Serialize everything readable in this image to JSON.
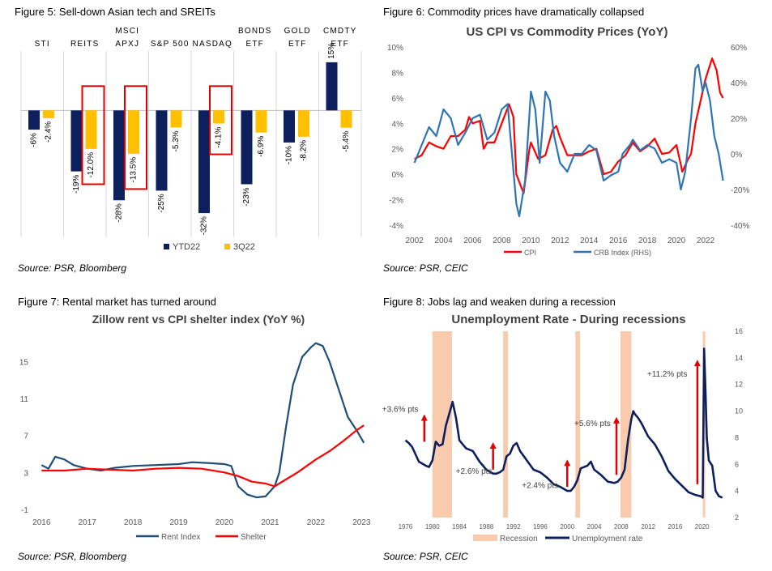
{
  "figures": [
    {
      "id": "fig5",
      "label": "Figure 5: Sell-down Asian tech and SREITs",
      "source": "Source: PSR, Bloomberg",
      "chart_data": {
        "type": "bar",
        "categories": [
          {
            "line1": "STI",
            "line2": ""
          },
          {
            "line1": "REITS",
            "line2": ""
          },
          {
            "line1": "MSCI",
            "line2": "APXJ"
          },
          {
            "line1": "S&P 500",
            "line2": ""
          },
          {
            "line1": "NASDAQ",
            "line2": ""
          },
          {
            "line1": "BONDS",
            "line2": "ETF"
          },
          {
            "line1": "GOLD",
            "line2": "ETF"
          },
          {
            "line1": "CMDTY",
            "line2": "ETF"
          }
        ],
        "series": [
          {
            "name": "YTD22",
            "color": "#0d1f5c",
            "values": [
              -6,
              -19,
              -28,
              -25,
              -32,
              -23,
              -10,
              15
            ],
            "labels": [
              "-6%",
              "-19%",
              "-28%",
              "-25%",
              "-32%",
              "-23%",
              "-10%",
              "15%"
            ]
          },
          {
            "name": "3Q22",
            "color": "#ffc000",
            "values": [
              -2.4,
              -12.0,
              -13.5,
              -5.3,
              -4.1,
              -6.9,
              -8.2,
              -5.4
            ],
            "labels": [
              "-2.4%",
              "-12.0%",
              "-13.5%",
              "-5.3%",
              "-4.1%",
              "-6.9%",
              "-8.2%",
              "-5.4%"
            ]
          }
        ],
        "highlighted_categories": [
          1,
          2,
          4
        ],
        "highlight_color": "#e00000",
        "ylim": [
          -35,
          18
        ],
        "legend_position": "bottom"
      }
    },
    {
      "id": "fig6",
      "label": "Figure 6: Commodity prices have dramatically collapsed",
      "source": "Source: PSR, CEIC",
      "chart_data": {
        "type": "line",
        "title": "US CPI vs Commodity Prices (YoY)",
        "xlim": [
          2001.8,
          2023.5
        ],
        "x_ticks": [
          2002,
          2004,
          2006,
          2008,
          2010,
          2012,
          2014,
          2016,
          2018,
          2020,
          2022
        ],
        "y_left": {
          "ylim": [
            -4,
            10
          ],
          "ticks": [
            -4,
            -2,
            0,
            2,
            4,
            6,
            8,
            10
          ],
          "tick_labels": [
            "-4%",
            "-2%",
            "0%",
            "2%",
            "4%",
            "6%",
            "8%",
            "10%"
          ]
        },
        "y_right": {
          "ylim": [
            -40,
            60
          ],
          "ticks": [
            -40,
            -20,
            0,
            20,
            40,
            60
          ],
          "tick_labels": [
            "-40%",
            "-20%",
            "0%",
            "20%",
            "40%",
            "60%"
          ]
        },
        "series": [
          {
            "name": "CPI",
            "color": "#ff0000",
            "axis": "left",
            "x": [
              2002,
              2002.5,
              2003,
              2003.5,
              2004,
              2004.5,
              2005,
              2005.5,
              2005.75,
              2006,
              2006.5,
              2006.75,
              2007,
              2007.5,
              2008,
              2008.5,
              2008.8,
              2009,
              2009.5,
              2009.9,
              2010,
              2010.5,
              2011,
              2011.5,
              2011.75,
              2012,
              2012.5,
              2013,
              2013.5,
              2014,
              2014.5,
              2015,
              2015.5,
              2016,
              2016.5,
              2017,
              2017.5,
              2018,
              2018.5,
              2019,
              2019.5,
              2020,
              2020.4,
              2020.8,
              2021,
              2021.3,
              2021.6,
              2022,
              2022.45,
              2022.75,
              2023,
              2023.2
            ],
            "y": [
              1.2,
              1.5,
              2.5,
              2.2,
              2.0,
              3.0,
              3.0,
              3.5,
              4.5,
              4.0,
              4.2,
              2.0,
              2.5,
              2.5,
              4.0,
              5.5,
              4.5,
              0.0,
              -1.5,
              2.0,
              2.5,
              1.2,
              1.5,
              3.5,
              3.8,
              2.9,
              1.5,
              1.5,
              1.5,
              1.8,
              2.0,
              0.0,
              0.2,
              1.0,
              1.5,
              2.5,
              1.8,
              2.2,
              2.8,
              1.6,
              1.7,
              2.3,
              0.2,
              1.2,
              1.6,
              4.0,
              5.5,
              7.5,
              9.1,
              8.2,
              6.4,
              6.0
            ]
          },
          {
            "name": "CRB Index (RHS)",
            "color": "#2e75b6",
            "axis": "right",
            "x": [
              2002,
              2002.5,
              2003,
              2003.5,
              2004,
              2004.5,
              2005,
              2005.5,
              2006,
              2006.5,
              2007,
              2007.5,
              2008,
              2008.4,
              2008.7,
              2009,
              2009.2,
              2009.6,
              2010,
              2010.3,
              2010.6,
              2011,
              2011.3,
              2011.6,
              2012,
              2012.5,
              2013,
              2013.5,
              2014,
              2014.5,
              2015,
              2015.5,
              2016,
              2016.3,
              2016.8,
              2017,
              2017.5,
              2018,
              2018.5,
              2019,
              2019.5,
              2020,
              2020.3,
              2020.6,
              2021,
              2021.3,
              2021.5,
              2021.8,
              2022,
              2022.3,
              2022.6,
              2022.9,
              2023.2
            ],
            "y": [
              -5,
              5,
              15,
              10,
              25,
              20,
              5,
              12,
              20,
              22,
              8,
              12,
              25,
              28,
              0,
              -28,
              -35,
              -15,
              35,
              25,
              -5,
              35,
              30,
              10,
              -5,
              -10,
              0,
              0,
              5,
              2,
              -15,
              -12,
              -10,
              0,
              5,
              8,
              2,
              5,
              3,
              -5,
              -3,
              -5,
              -20,
              -10,
              20,
              48,
              50,
              35,
              40,
              30,
              10,
              0,
              -15
            ]
          }
        ],
        "legend_position": "bottom"
      }
    },
    {
      "id": "fig7",
      "label": "Figure 7: Rental market has turned around",
      "source": "Source: PSR, Bloomberg",
      "chart_data": {
        "type": "line",
        "title": "Zillow rent vs CPI shelter index (YoY %)",
        "xlim": [
          2015.8,
          2023.1
        ],
        "x_ticks": [
          2016,
          2017,
          2018,
          2019,
          2020,
          2021,
          2022,
          2023
        ],
        "ylim": [
          -1.8,
          17.5
        ],
        "y_ticks": [
          -1,
          3,
          7,
          11,
          15
        ],
        "series": [
          {
            "name": "Rent Index",
            "color": "#1f4e79",
            "x": [
              2016,
              2016.15,
              2016.3,
              2016.5,
              2016.7,
              2017,
              2017.3,
              2017.6,
              2018,
              2018.5,
              2019,
              2019.3,
              2019.7,
              2020,
              2020.15,
              2020.3,
              2020.5,
              2020.7,
              2020.9,
              2021.1,
              2021.2,
              2021.35,
              2021.5,
              2021.7,
              2021.9,
              2022,
              2022.15,
              2022.3,
              2022.5,
              2022.7,
              2022.9,
              2023.05
            ],
            "y": [
              3.8,
              3.4,
              4.7,
              4.4,
              3.8,
              3.4,
              3.2,
              3.5,
              3.7,
              3.8,
              3.9,
              4.1,
              4.0,
              3.9,
              3.7,
              1.5,
              0.6,
              0.3,
              0.4,
              1.5,
              3.0,
              8.0,
              12.5,
              15.5,
              16.6,
              17.0,
              16.7,
              15.0,
              12.0,
              9.0,
              7.5,
              6.2
            ]
          },
          {
            "name": "Shelter",
            "color": "#ff0000",
            "x": [
              2016,
              2016.5,
              2017,
              2017.5,
              2018,
              2018.5,
              2019,
              2019.5,
              2020,
              2020.3,
              2020.6,
              2020.9,
              2021.1,
              2021.3,
              2021.6,
              2022,
              2022.3,
              2022.6,
              2022.9,
              2023.05
            ],
            "y": [
              3.2,
              3.2,
              3.4,
              3.3,
              3.2,
              3.4,
              3.5,
              3.4,
              3.0,
              2.6,
              2.0,
              1.8,
              1.5,
              2.1,
              3.0,
              4.4,
              5.3,
              6.4,
              7.6,
              8.1
            ]
          }
        ],
        "legend_position": "bottom"
      }
    },
    {
      "id": "fig8",
      "label": "Figure 8:  Jobs lag and weaken during a recession",
      "source": "Source: PSR, CEIC",
      "chart_data": {
        "type": "line",
        "title": "Unemployment Rate - During recessions",
        "xlim": [
          1974.5,
          2024
        ],
        "x_ticks": [
          1976,
          1980,
          1984,
          1988,
          1992,
          1996,
          2000,
          2004,
          2008,
          2012,
          2016,
          2020
        ],
        "ylim": [
          2,
          16
        ],
        "y_ticks": [
          2,
          4,
          6,
          8,
          10,
          12,
          14,
          16
        ],
        "y_axis": "right",
        "recessions": [
          [
            1980.0,
            1982.9
          ],
          [
            1990.5,
            1991.2
          ],
          [
            2001.2,
            2001.9
          ],
          [
            2007.9,
            2009.5
          ],
          [
            2020.1,
            2020.4
          ]
        ],
        "recession_color": "#f8cbad",
        "series": [
          {
            "name": "Unemployment rate",
            "color": "#0d1f5c",
            "x": [
              1976,
              1976.5,
              1977,
              1978,
              1979,
              1979.5,
              1980,
              1980.5,
              1981,
              1981.5,
              1982,
              1982.5,
              1983,
              1983.5,
              1984,
              1985,
              1986,
              1987,
              1988,
              1989,
              1989.5,
              1990,
              1990.5,
              1991,
              1991.5,
              1992,
              1992.5,
              1993,
              1994,
              1995,
              1996,
              1997,
              1998,
              1999,
              2000,
              2000.5,
              2001,
              2001.5,
              2002,
              2002.5,
              2003,
              2003.5,
              2004,
              2005,
              2006,
              2007,
              2007.5,
              2008,
              2008.5,
              2009,
              2009.5,
              2009.8,
              2010,
              2010.5,
              2011,
              2012,
              2013,
              2014,
              2015,
              2016,
              2017,
              2018,
              2019,
              2019.8,
              2020.1,
              2020.3,
              2020.5,
              2020.7,
              2021,
              2021.5,
              2022,
              2022.5,
              2023
            ],
            "y": [
              7.8,
              7.6,
              7.3,
              6.2,
              5.9,
              5.8,
              6.3,
              7.7,
              7.4,
              7.5,
              8.9,
              9.8,
              10.7,
              9.5,
              7.8,
              7.2,
              7.0,
              6.2,
              5.6,
              5.3,
              5.3,
              5.4,
              5.6,
              6.6,
              6.8,
              7.4,
              7.6,
              7.0,
              6.3,
              5.6,
              5.4,
              5.0,
              4.5,
              4.3,
              4.0,
              4.0,
              4.3,
              4.8,
              5.7,
              5.8,
              5.9,
              6.2,
              5.6,
              5.2,
              4.7,
              4.6,
              4.7,
              5.0,
              5.6,
              7.8,
              9.4,
              10.0,
              9.8,
              9.5,
              9.1,
              8.1,
              7.5,
              6.6,
              5.5,
              4.9,
              4.4,
              3.9,
              3.7,
              3.6,
              3.5,
              14.7,
              11.5,
              8.0,
              6.3,
              5.9,
              4.0,
              3.6,
              3.5
            ]
          }
        ],
        "annotations": [
          {
            "text": "+3.6% pts",
            "arrow_x": 1978.8,
            "arrow_from": 7.7,
            "arrow_to": 9.7
          },
          {
            "text": "+2.6% pts",
            "arrow_x": 1989.0,
            "arrow_from": 5.6,
            "arrow_to": 7.6
          },
          {
            "text": "+2.4% pts",
            "arrow_x": 2000.0,
            "arrow_from": 4.3,
            "arrow_to": 6.3
          },
          {
            "text": "+5.6% pts",
            "arrow_x": 2007.3,
            "arrow_from": 5.2,
            "arrow_to": 9.5
          },
          {
            "text": "+11.2% pts",
            "arrow_x": 2019.3,
            "arrow_from": 4.5,
            "arrow_to": 13.8
          }
        ],
        "annotation_color": "#e00000",
        "legend": [
          "Recession",
          "Unemployment rate"
        ],
        "legend_position": "bottom"
      }
    }
  ]
}
